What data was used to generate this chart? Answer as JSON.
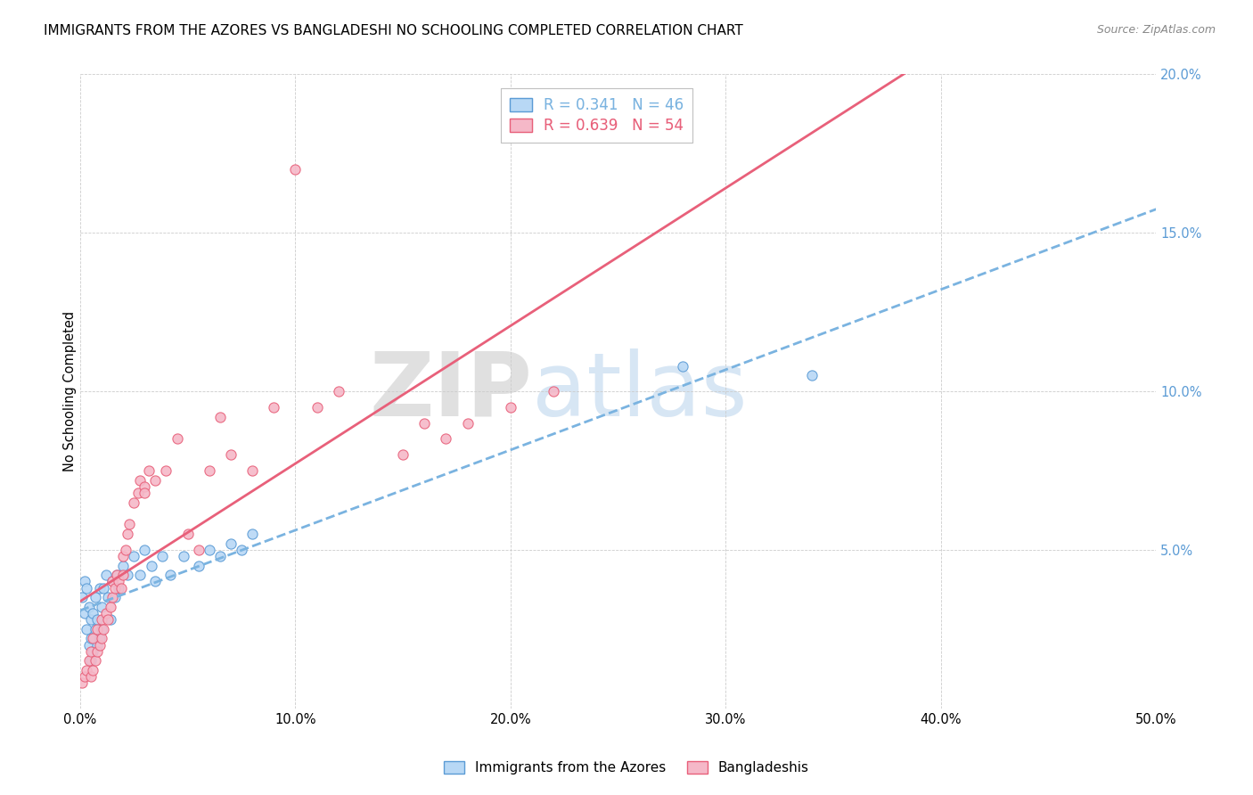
{
  "title": "IMMIGRANTS FROM THE AZORES VS BANGLADESHI NO SCHOOLING COMPLETED CORRELATION CHART",
  "source": "Source: ZipAtlas.com",
  "ylabel": "No Schooling Completed",
  "xlim": [
    0.0,
    0.5
  ],
  "ylim": [
    0.0,
    0.2
  ],
  "xticks": [
    0.0,
    0.1,
    0.2,
    0.3,
    0.4,
    0.5
  ],
  "yticks": [
    0.0,
    0.05,
    0.1,
    0.15,
    0.2
  ],
  "xticklabels": [
    "0.0%",
    "10.0%",
    "20.0%",
    "30.0%",
    "40.0%",
    "50.0%"
  ],
  "yticklabels": [
    "",
    "5.0%",
    "10.0%",
    "15.0%",
    "20.0%"
  ],
  "watermark_zip": "ZIP",
  "watermark_atlas": "atlas",
  "series": [
    {
      "name": "Immigrants from the Azores",
      "R": 0.341,
      "N": 46,
      "color": "#b8d8f5",
      "edge_color": "#5b9bd5",
      "line_color": "#7ab3e0",
      "line_style": "--",
      "x": [
        0.001,
        0.002,
        0.002,
        0.003,
        0.003,
        0.004,
        0.004,
        0.005,
        0.005,
        0.005,
        0.006,
        0.006,
        0.007,
        0.007,
        0.008,
        0.008,
        0.009,
        0.009,
        0.01,
        0.01,
        0.011,
        0.012,
        0.013,
        0.014,
        0.015,
        0.016,
        0.017,
        0.018,
        0.02,
        0.022,
        0.025,
        0.028,
        0.03,
        0.033,
        0.035,
        0.038,
        0.042,
        0.048,
        0.055,
        0.06,
        0.065,
        0.07,
        0.075,
        0.08,
        0.28,
        0.34
      ],
      "y": [
        0.035,
        0.04,
        0.03,
        0.025,
        0.038,
        0.02,
        0.032,
        0.028,
        0.015,
        0.022,
        0.018,
        0.03,
        0.025,
        0.035,
        0.02,
        0.028,
        0.022,
        0.038,
        0.025,
        0.032,
        0.038,
        0.042,
        0.035,
        0.028,
        0.04,
        0.035,
        0.042,
        0.038,
        0.045,
        0.042,
        0.048,
        0.042,
        0.05,
        0.045,
        0.04,
        0.048,
        0.042,
        0.048,
        0.045,
        0.05,
        0.048,
        0.052,
        0.05,
        0.055,
        0.108,
        0.105
      ]
    },
    {
      "name": "Bangladeshis",
      "R": 0.639,
      "N": 54,
      "color": "#f5b8c8",
      "edge_color": "#e8607a",
      "line_color": "#e8607a",
      "line_style": "-",
      "x": [
        0.001,
        0.002,
        0.003,
        0.004,
        0.005,
        0.005,
        0.006,
        0.006,
        0.007,
        0.008,
        0.008,
        0.009,
        0.01,
        0.01,
        0.011,
        0.012,
        0.013,
        0.014,
        0.015,
        0.015,
        0.016,
        0.017,
        0.018,
        0.019,
        0.02,
        0.02,
        0.021,
        0.022,
        0.023,
        0.025,
        0.027,
        0.028,
        0.03,
        0.03,
        0.032,
        0.035,
        0.04,
        0.045,
        0.05,
        0.055,
        0.06,
        0.065,
        0.07,
        0.08,
        0.09,
        0.1,
        0.11,
        0.12,
        0.15,
        0.16,
        0.17,
        0.18,
        0.2,
        0.22
      ],
      "y": [
        0.008,
        0.01,
        0.012,
        0.015,
        0.01,
        0.018,
        0.012,
        0.022,
        0.015,
        0.018,
        0.025,
        0.02,
        0.022,
        0.028,
        0.025,
        0.03,
        0.028,
        0.032,
        0.035,
        0.04,
        0.038,
        0.042,
        0.04,
        0.038,
        0.042,
        0.048,
        0.05,
        0.055,
        0.058,
        0.065,
        0.068,
        0.072,
        0.07,
        0.068,
        0.075,
        0.072,
        0.075,
        0.085,
        0.055,
        0.05,
        0.075,
        0.092,
        0.08,
        0.075,
        0.095,
        0.17,
        0.095,
        0.1,
        0.08,
        0.09,
        0.085,
        0.09,
        0.095,
        0.1
      ]
    }
  ],
  "title_fontsize": 11,
  "source_fontsize": 9,
  "background_color": "#ffffff",
  "grid_color": "#cccccc",
  "right_yaxis_color": "#5b9bd5",
  "ylabel_color": "#000000"
}
